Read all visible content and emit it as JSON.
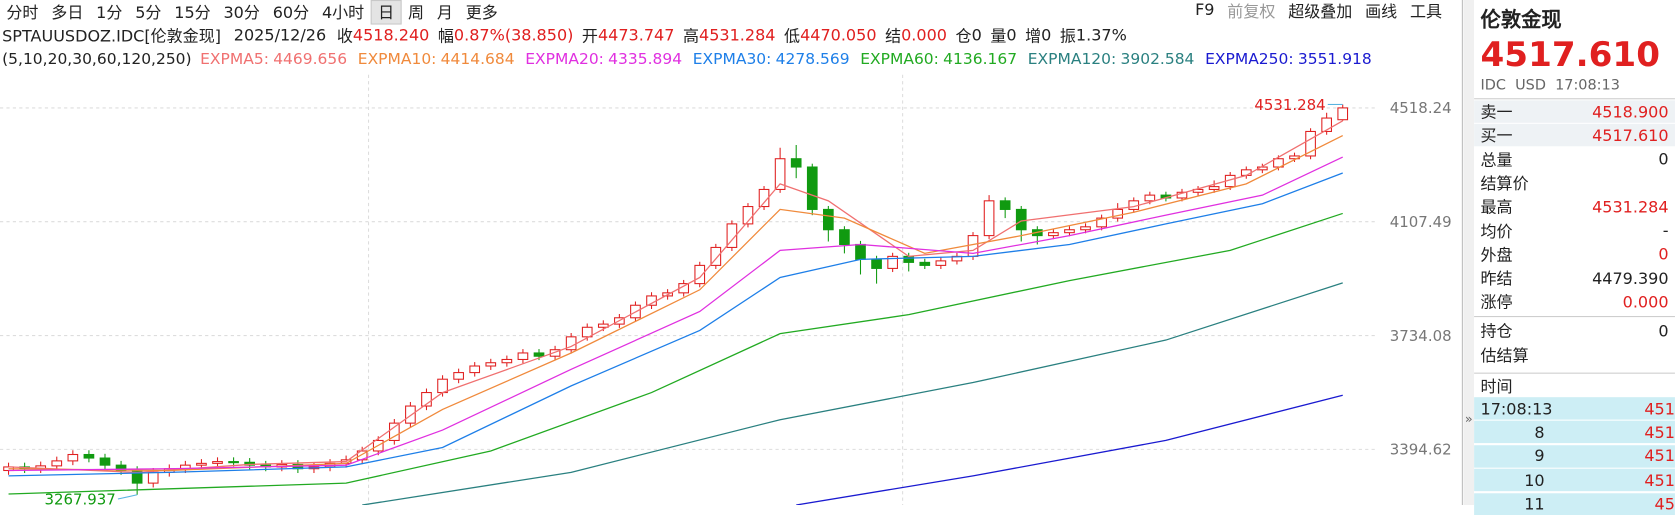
{
  "toolbar": {
    "periods": [
      "分时",
      "多日",
      "1分",
      "5分",
      "15分",
      "30分",
      "60分",
      "4小时",
      "日",
      "周",
      "月",
      "更多"
    ],
    "selected_index": 8,
    "tools": [
      "F9",
      "前复权",
      "超级叠加",
      "画线",
      "工具"
    ]
  },
  "quote_bar": {
    "symbol": "SPTAUUSDOZ.IDC[伦敦金现]",
    "date": "2025/12/26",
    "items": [
      {
        "label": "收",
        "value": "4518.240",
        "color": "#e02020"
      },
      {
        "label": "幅",
        "value": "0.87%(38.850)",
        "color": "#e02020"
      },
      {
        "label": "开",
        "value": "4473.747",
        "color": "#e02020"
      },
      {
        "label": "高",
        "value": "4531.284",
        "color": "#e02020"
      },
      {
        "label": "低",
        "value": "4470.050",
        "color": "#e02020"
      },
      {
        "label": "结",
        "value": "0.000",
        "color": "#e02020"
      },
      {
        "label": "仓",
        "value": "0",
        "color": "#222"
      },
      {
        "label": "量",
        "value": "0",
        "color": "#222"
      },
      {
        "label": "增",
        "value": "0",
        "color": "#222"
      },
      {
        "label": "振",
        "value": "1.37%",
        "color": "#222"
      }
    ]
  },
  "chart": {
    "type": "candlestick",
    "params": "(5,10,20,30,60,120,250)",
    "log_scale": true,
    "grid": true,
    "ylim": [
      3240,
      4555
    ],
    "yticks": [
      4518.24,
      4107.49,
      3734.08,
      3394.62
    ],
    "up_color": "#e02020",
    "down_color": "#109a10",
    "candles": {
      "open": [
        3335,
        3345,
        3340,
        3348,
        3362,
        3380,
        3370,
        3350,
        3335,
        3300,
        3330,
        3340,
        3350,
        3355,
        3360,
        3358,
        3350,
        3345,
        3352,
        3340,
        3345,
        3355,
        3365,
        3390,
        3420,
        3470,
        3520,
        3560,
        3600,
        3620,
        3640,
        3650,
        3660,
        3680,
        3670,
        3690,
        3730,
        3760,
        3770,
        3790,
        3830,
        3860,
        3870,
        3900,
        3960,
        4020,
        4100,
        4160,
        4220,
        4330,
        4300,
        4150,
        4080,
        4030,
        3980,
        3950,
        3990,
        3970,
        3960,
        3975,
        3990,
        4060,
        4180,
        4150,
        4080,
        4060,
        4070,
        4080,
        4090,
        4120,
        4150,
        4180,
        4200,
        4190,
        4210,
        4220,
        4230,
        4270,
        4290,
        4300,
        4330,
        4340,
        4430,
        4473.747
      ],
      "high": [
        3357,
        3357,
        3360,
        3374,
        3392,
        3392,
        3382,
        3362,
        3347,
        3342,
        3352,
        3362,
        3367,
        3372,
        3372,
        3370,
        3362,
        3364,
        3364,
        3357,
        3367,
        3377,
        3402,
        3432,
        3482,
        3532,
        3572,
        3612,
        3632,
        3652,
        3662,
        3672,
        3692,
        3692,
        3702,
        3742,
        3772,
        3782,
        3802,
        3842,
        3872,
        3882,
        3912,
        3972,
        4032,
        4112,
        4172,
        4232,
        4370,
        4380,
        4312,
        4162,
        4092,
        4042,
        3992,
        4002,
        4002,
        3982,
        3987,
        4002,
        4072,
        4200,
        4192,
        4162,
        4092,
        4082,
        4092,
        4102,
        4132,
        4172,
        4192,
        4212,
        4212,
        4222,
        4232,
        4252,
        4282,
        4302,
        4312,
        4342,
        4352,
        4442,
        4500,
        4531.284
      ],
      "low": [
        3323,
        3328,
        3328,
        3336,
        3350,
        3358,
        3338,
        3323,
        3267.937,
        3288,
        3318,
        3328,
        3338,
        3343,
        3346,
        3338,
        3333,
        3333,
        3328,
        3328,
        3333,
        3343,
        3353,
        3378,
        3408,
        3458,
        3508,
        3548,
        3588,
        3608,
        3628,
        3638,
        3648,
        3658,
        3658,
        3678,
        3718,
        3748,
        3758,
        3778,
        3818,
        3848,
        3858,
        3888,
        3948,
        4008,
        4088,
        4148,
        4208,
        4260,
        4130,
        4040,
        4000,
        3930,
        3900,
        3938,
        3940,
        3948,
        3948,
        3963,
        3978,
        4048,
        4120,
        4040,
        4030,
        4048,
        4058,
        4068,
        4078,
        4108,
        4138,
        4168,
        4178,
        4178,
        4198,
        4208,
        4218,
        4258,
        4278,
        4288,
        4318,
        4328,
        4418,
        4470.05
      ],
      "close": [
        3345,
        3340,
        3348,
        3362,
        3380,
        3370,
        3350,
        3335,
        3300,
        3330,
        3340,
        3350,
        3355,
        3360,
        3358,
        3350,
        3345,
        3352,
        3340,
        3345,
        3355,
        3365,
        3390,
        3420,
        3470,
        3520,
        3560,
        3600,
        3620,
        3640,
        3650,
        3660,
        3680,
        3670,
        3690,
        3730,
        3760,
        3770,
        3790,
        3830,
        3860,
        3870,
        3900,
        3960,
        4020,
        4100,
        4160,
        4220,
        4330,
        4300,
        4150,
        4080,
        4030,
        3980,
        3950,
        3990,
        3970,
        3960,
        3975,
        3990,
        4060,
        4180,
        4150,
        4080,
        4060,
        4070,
        4080,
        4090,
        4120,
        4150,
        4180,
        4200,
        4190,
        4210,
        4220,
        4230,
        4270,
        4290,
        4300,
        4330,
        4340,
        4430,
        4480,
        4518.24
      ]
    },
    "series": [
      {
        "name": "EXPMA5:",
        "color": "#f07070",
        "x": [
          0,
          8,
          15,
          21,
          27,
          35,
          43,
          48,
          51,
          56,
          60,
          63,
          70,
          77,
          83
        ],
        "values": [
          3345,
          3330,
          3352,
          3360,
          3560,
          3700,
          3920,
          4240,
          4180,
          3990,
          4010,
          4110,
          4160,
          4270,
          4469.656
        ]
      },
      {
        "name": "EXPMA10:",
        "color": "#f08a3c",
        "x": [
          0,
          10,
          21,
          27,
          35,
          43,
          48,
          52,
          57,
          63,
          70,
          77,
          83
        ],
        "values": [
          3340,
          3335,
          3355,
          3510,
          3680,
          3880,
          4150,
          4120,
          4000,
          4060,
          4140,
          4240,
          4414.684
        ]
      },
      {
        "name": "EXPMA20:",
        "color": "#e030e0",
        "x": [
          0,
          10,
          21,
          27,
          35,
          43,
          48,
          53,
          60,
          66,
          72,
          78,
          83
        ],
        "values": [
          3335,
          3340,
          3350,
          3450,
          3630,
          3810,
          4010,
          4030,
          4000,
          4060,
          4130,
          4200,
          4335.894
        ]
      },
      {
        "name": "EXPMA30:",
        "color": "#1e7fe8",
        "x": [
          0,
          10,
          21,
          27,
          35,
          43,
          48,
          53,
          60,
          66,
          72,
          78,
          83
        ],
        "values": [
          3320,
          3330,
          3345,
          3400,
          3580,
          3750,
          3920,
          3980,
          3990,
          4030,
          4100,
          4170,
          4278.569
        ]
      },
      {
        "name": "EXPMA60:",
        "color": "#22aa22",
        "x": [
          0,
          21,
          30,
          40,
          48,
          56,
          66,
          76,
          83
        ],
        "values": [
          3270,
          3300,
          3390,
          3560,
          3740,
          3800,
          3910,
          4010,
          4136.167
        ]
      },
      {
        "name": "EXPMA120:",
        "color": "#2a8080",
        "x": [
          22,
          35,
          48,
          60,
          72,
          83
        ],
        "values": [
          3240,
          3330,
          3480,
          3590,
          3720,
          3902.584
        ]
      },
      {
        "name": "EXPMA250:",
        "color": "#1a1ad0",
        "x": [
          49,
          60,
          72,
          83
        ],
        "values": [
          3240,
          3320,
          3420,
          3551.918
        ]
      }
    ]
  },
  "panel": {
    "title": "伦敦金现",
    "price": "4517.610",
    "meta": "IDC  USD  17:08:13",
    "quotes": [
      {
        "label": "卖一",
        "value": "4518.900",
        "color": "#e02020",
        "shade": true
      },
      {
        "label": "买一",
        "value": "4517.610",
        "color": "#e02020",
        "shade": true
      },
      {
        "label": "总量",
        "value": "0",
        "color": "#222"
      },
      {
        "label": "结算价"
      },
      {
        "label": "最高",
        "value": "4531.284",
        "color": "#e02020"
      },
      {
        "label": "均价",
        "value": "-",
        "color": "#222"
      },
      {
        "label": "外盘",
        "value": "0",
        "color": "#e02020"
      },
      {
        "label": "昨结",
        "value": "4479.390",
        "color": "#222"
      },
      {
        "label": "涨停",
        "value": "0.000",
        "color": "#e02020"
      }
    ],
    "position": [
      {
        "label": "持仓",
        "value": "0"
      },
      {
        "label": "估结算"
      }
    ],
    "ticks_header": "时间",
    "ticks": [
      [
        "17:08:13",
        "451"
      ],
      [
        "8",
        "451"
      ],
      [
        "9",
        "451"
      ],
      [
        "10",
        "451"
      ],
      [
        "11",
        "45"
      ]
    ]
  }
}
